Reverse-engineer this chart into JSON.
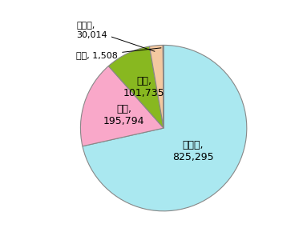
{
  "labels": [
    "下水道",
    "水道",
    "病院",
    "その他",
    "ガス"
  ],
  "values": [
    825295,
    195794,
    101735,
    30014,
    1508
  ],
  "colors": [
    "#aae8f0",
    "#f9a8c9",
    "#88b820",
    "#f4c8a0",
    "#ccdd88"
  ],
  "title_fontsize": 12,
  "label_fontsize": 9
}
